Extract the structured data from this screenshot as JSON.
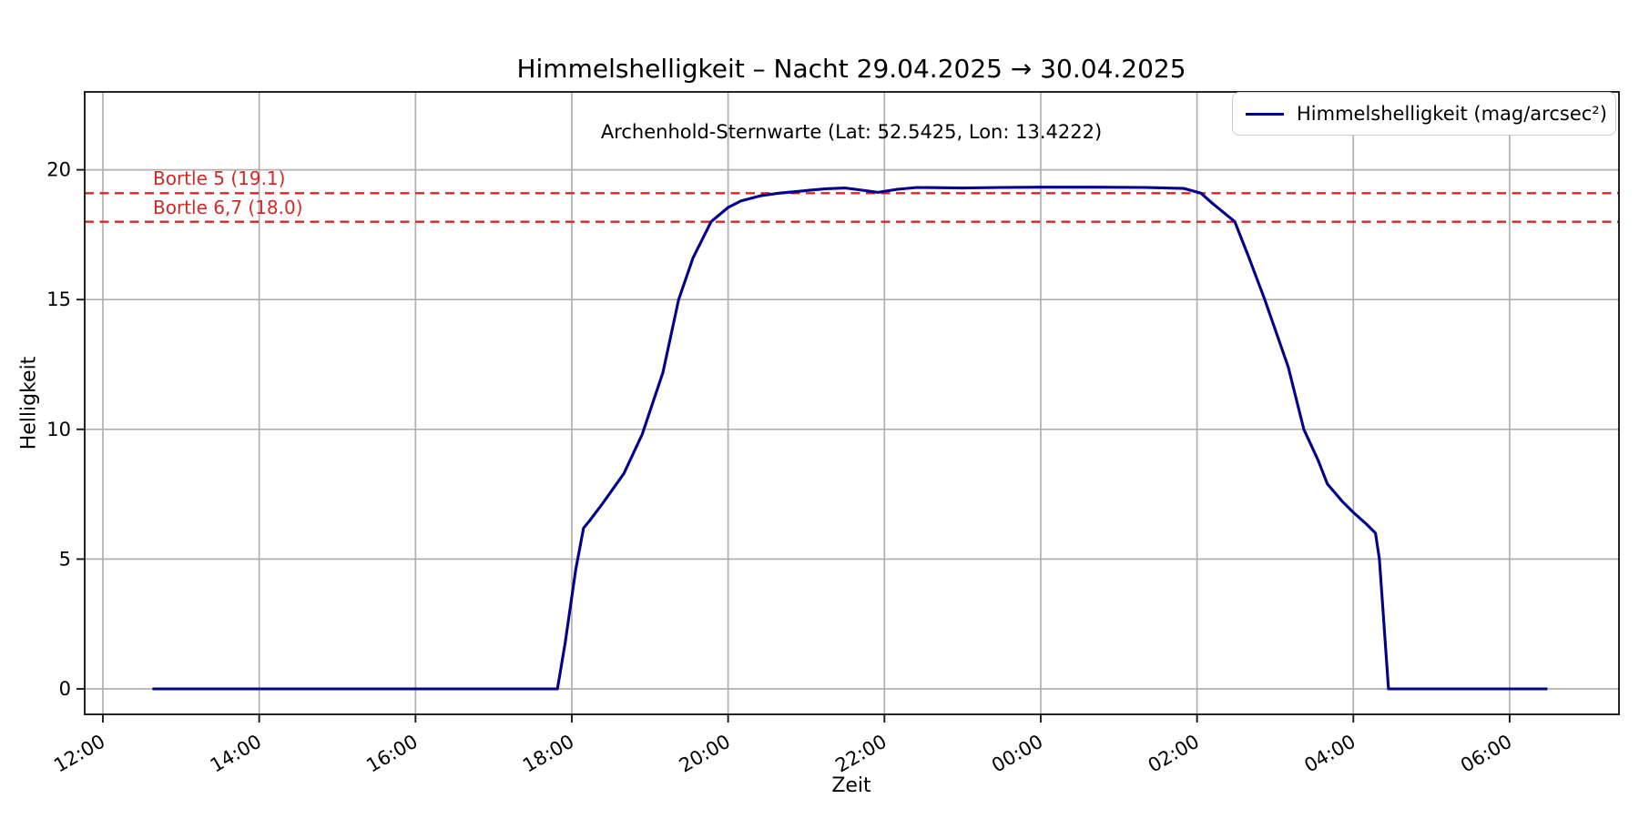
{
  "chart_data": {
    "type": "line",
    "title": "Himmelshelligkeit – Nacht 29.04.2025 → 30.04.2025",
    "annotation": "Archenhold-Sternwarte (Lat: 52.5425, Lon: 13.4222)",
    "xlabel": "Zeit",
    "ylabel": "Helligkeit",
    "x_tick_labels": [
      "12:00",
      "14:00",
      "16:00",
      "18:00",
      "20:00",
      "22:00",
      "00:00",
      "02:00",
      "04:00",
      "06:00"
    ],
    "y_ticks": [
      0,
      5,
      10,
      15,
      20
    ],
    "ylim": [
      -1,
      23
    ],
    "grid": true,
    "legend_position": "upper right",
    "colors": {
      "series": "#00008b",
      "threshold": "#d62728",
      "grid": "#b0b0b0",
      "spine": "#1a1a1a",
      "background": "#ffffff"
    },
    "thresholds": [
      {
        "label": "Bortle 5 (19.1)",
        "value": 19.1
      },
      {
        "label": "Bortle 6,7 (18.0)",
        "value": 18.0
      }
    ],
    "series": [
      {
        "name": "Himmelshelligkeit (mag/arcsec²)",
        "points": [
          [
            "12:38",
            0.0
          ],
          [
            "17:49",
            0.0
          ],
          [
            "17:55",
            1.8
          ],
          [
            "18:03",
            4.6
          ],
          [
            "18:09",
            6.2
          ],
          [
            "18:14",
            6.5
          ],
          [
            "18:23",
            7.1
          ],
          [
            "18:40",
            8.3
          ],
          [
            "18:54",
            9.8
          ],
          [
            "19:10",
            12.2
          ],
          [
            "19:22",
            15.0
          ],
          [
            "19:33",
            16.6
          ],
          [
            "19:47",
            18.0
          ],
          [
            "20:00",
            18.55
          ],
          [
            "20:10",
            18.8
          ],
          [
            "20:25",
            19.0
          ],
          [
            "20:39",
            19.1
          ],
          [
            "21:00",
            19.2
          ],
          [
            "21:15",
            19.27
          ],
          [
            "21:30",
            19.3
          ],
          [
            "21:45",
            19.2
          ],
          [
            "21:55",
            19.13
          ],
          [
            "22:10",
            19.25
          ],
          [
            "22:25",
            19.32
          ],
          [
            "23:00",
            19.3
          ],
          [
            "23:30",
            19.32
          ],
          [
            "00:00",
            19.33
          ],
          [
            "00:40",
            19.33
          ],
          [
            "01:20",
            19.32
          ],
          [
            "01:50",
            19.28
          ],
          [
            "02:03",
            19.1
          ],
          [
            "02:12",
            18.7
          ],
          [
            "02:29",
            18.0
          ],
          [
            "02:40",
            16.6
          ],
          [
            "02:52",
            15.0
          ],
          [
            "03:10",
            12.4
          ],
          [
            "03:22",
            10.0
          ],
          [
            "03:33",
            8.8
          ],
          [
            "03:40",
            7.9
          ],
          [
            "03:52",
            7.2
          ],
          [
            "04:00",
            6.8
          ],
          [
            "04:10",
            6.35
          ],
          [
            "04:17",
            6.0
          ],
          [
            "04:20",
            5.0
          ],
          [
            "04:27",
            0.0
          ],
          [
            "06:29",
            0.0
          ]
        ]
      }
    ]
  }
}
